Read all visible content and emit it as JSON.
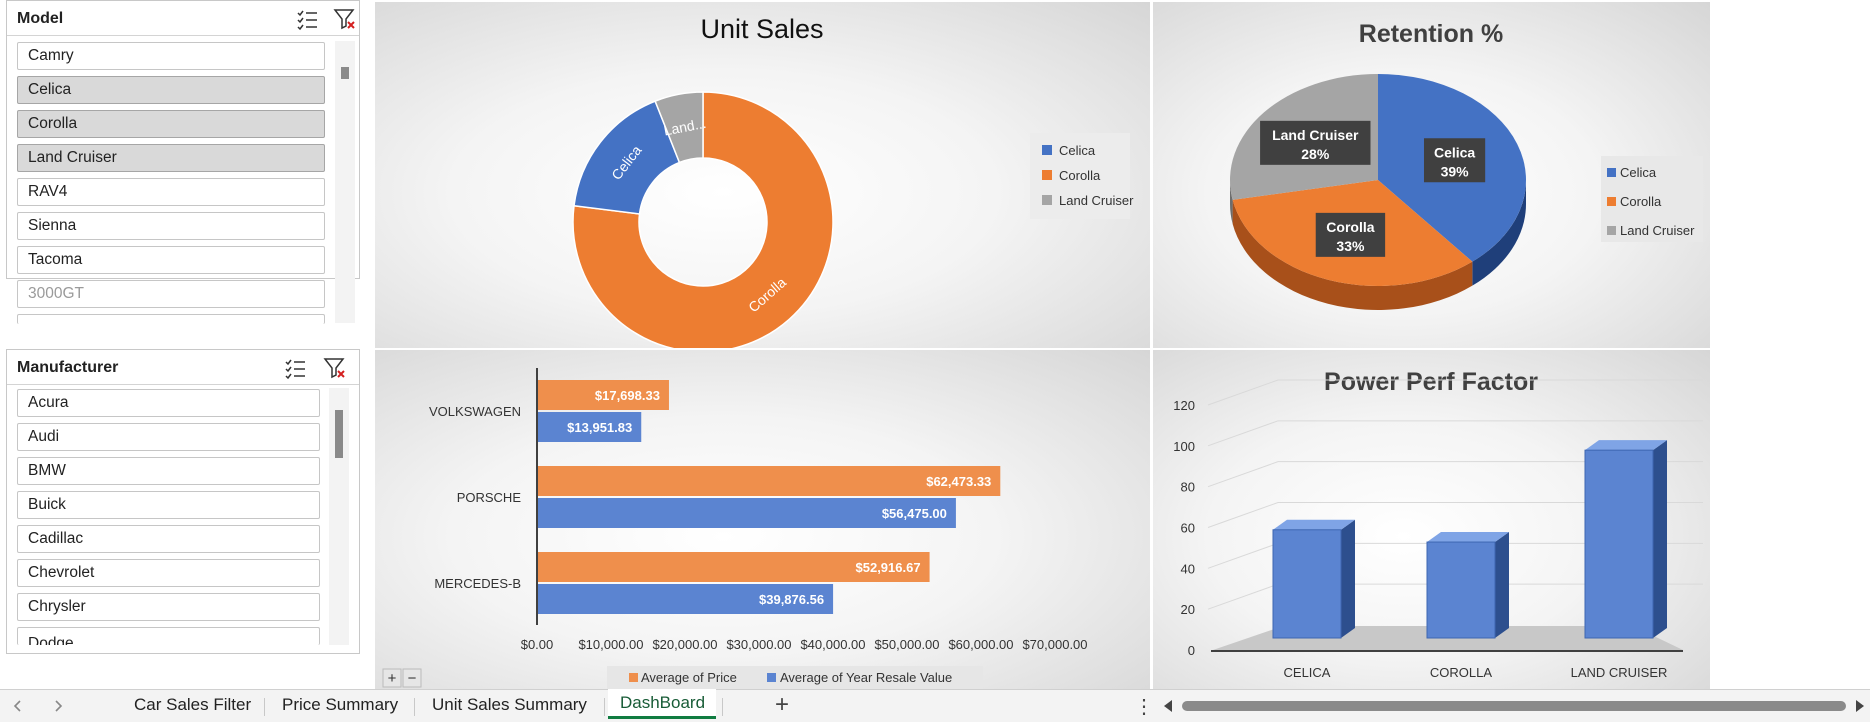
{
  "model_slicer": {
    "title": "Model",
    "items": [
      "Camry",
      "Celica",
      "Corolla",
      "Land Cruiser",
      "RAV4",
      "Sienna",
      "Tacoma",
      "3000GT"
    ]
  },
  "manufacturer_slicer": {
    "title": "Manufacturer",
    "items": [
      "Acura",
      "Audi",
      "BMW",
      "Buick",
      "Cadillac",
      "Chevrolet",
      "Chrysler",
      "Dodge"
    ]
  },
  "colors": {
    "blue": "#4472c4",
    "orange": "#ed7d31",
    "gray": "#a5a5a5"
  },
  "chart_data": [
    {
      "type": "pie",
      "subtype": "donut",
      "title": "Unit Sales",
      "categories": [
        "Celica",
        "Corolla",
        "Land Cruiser"
      ],
      "values": [
        17,
        77,
        6
      ],
      "data_labels": [
        "Celica",
        "Corolla",
        "Land..."
      ],
      "legend": "right"
    },
    {
      "type": "pie",
      "subtype": "3d-pie",
      "title": "Retention %",
      "categories": [
        "Celica",
        "Corolla",
        "Land Cruiser"
      ],
      "values": [
        39,
        33,
        28
      ],
      "data_labels": [
        {
          "name": "Celica",
          "pct": "39%"
        },
        {
          "name": "Corolla",
          "pct": "33%"
        },
        {
          "name": "Land Cruiser",
          "pct": "28%"
        }
      ],
      "legend": "right"
    },
    {
      "type": "bar",
      "orientation": "horizontal",
      "title": "",
      "categories": [
        "VOLKSWAGEN",
        "PORSCHE",
        "MERCEDES-B"
      ],
      "series": [
        {
          "name": "Average of Price",
          "values": [
            17698.33,
            62473.33,
            52916.67
          ],
          "labels": [
            "$17,698.33",
            "$62,473.33",
            "$52,916.67"
          ]
        },
        {
          "name": "Average of Year Resale Value",
          "values": [
            13951.83,
            56475.0,
            39876.56
          ],
          "labels": [
            "$13,951.83",
            "$56,475.00",
            "$39,876.56"
          ]
        }
      ],
      "xlim": [
        0,
        70000
      ],
      "xticks": [
        "$0.00",
        "$10,000.00",
        "$20,000.00",
        "$30,000.00",
        "$40,000.00",
        "$50,000.00",
        "$60,000.00",
        "$70,000.00"
      ],
      "legend": "bottom"
    },
    {
      "type": "bar",
      "subtype": "3d-column",
      "title": "Power Perf Factor",
      "categories": [
        "CELICA",
        "COROLLA",
        "LAND CRUISER"
      ],
      "values": [
        53,
        47,
        92
      ],
      "ylim": [
        0,
        120
      ],
      "yticks": [
        "0",
        "20",
        "40",
        "60",
        "80",
        "100",
        "120"
      ],
      "grid": true
    }
  ],
  "sheet_tabs": [
    "Car Sales Filter",
    "Price Summary",
    "Unit Sales Summary",
    "DashBoard"
  ],
  "active_tab": "DashBoard",
  "add_sheet": "+",
  "zoom_controls": [
    "+",
    "−"
  ]
}
